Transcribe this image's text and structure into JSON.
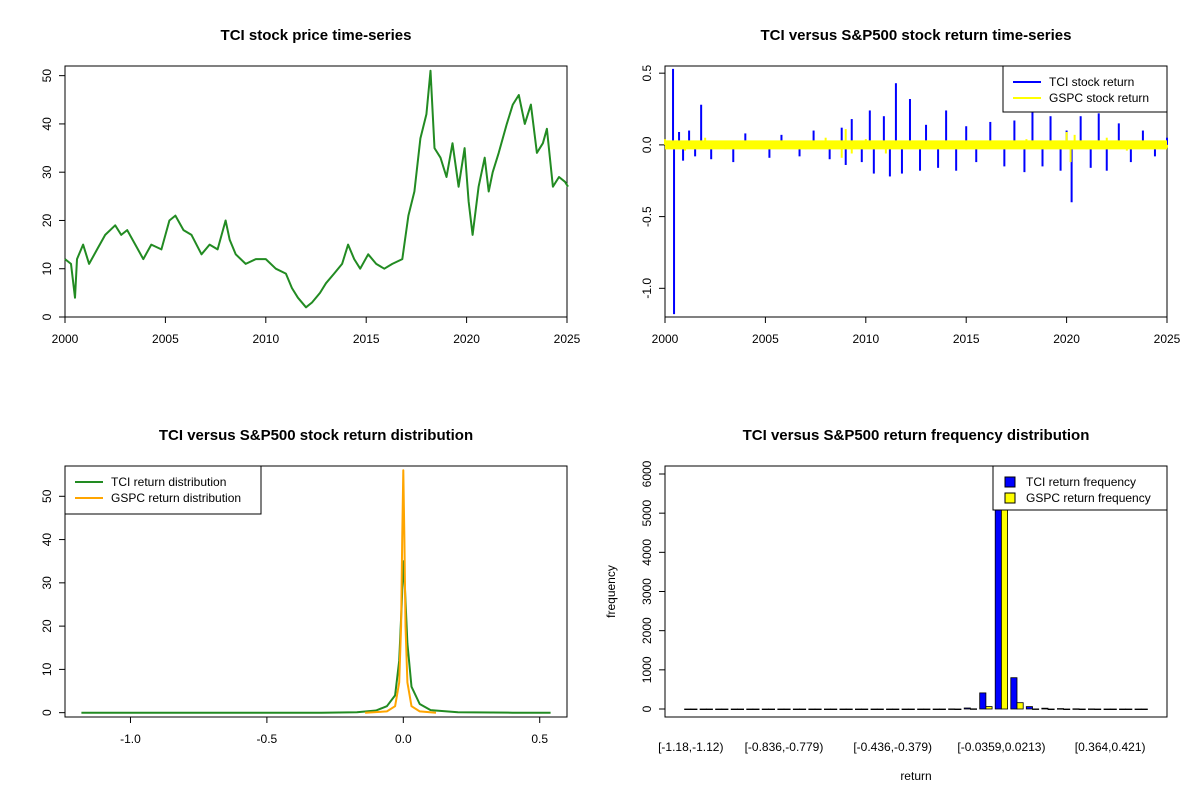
{
  "chart_data": [
    {
      "type": "line",
      "title": "TCI stock price time-series",
      "xlabel": "",
      "ylabel": "",
      "xlim": [
        2000,
        2025
      ],
      "ylim": [
        0,
        52
      ],
      "xticks": [
        "2000",
        "2005",
        "2010",
        "2015",
        "2020",
        "2025"
      ],
      "yticks": [
        "0",
        "10",
        "20",
        "30",
        "40",
        "50"
      ],
      "series": [
        {
          "name": "TCI stock price",
          "color": "#228B22",
          "x": [
            2000.0,
            2000.3,
            2000.5,
            2000.6,
            2000.9,
            2001.2,
            2001.6,
            2002.0,
            2002.5,
            2002.8,
            2003.1,
            2003.5,
            2003.9,
            2004.3,
            2004.8,
            2005.2,
            2005.5,
            2005.9,
            2006.3,
            2006.8,
            2007.2,
            2007.6,
            2008.0,
            2008.2,
            2008.5,
            2009.0,
            2009.5,
            2010.0,
            2010.5,
            2011.0,
            2011.3,
            2011.6,
            2012.0,
            2012.3,
            2012.7,
            2013.0,
            2013.4,
            2013.8,
            2014.1,
            2014.4,
            2014.7,
            2015.1,
            2015.5,
            2015.9,
            2016.3,
            2016.8,
            2017.1,
            2017.4,
            2017.7,
            2018.0,
            2018.2,
            2018.4,
            2018.7,
            2019.0,
            2019.3,
            2019.6,
            2019.9,
            2020.1,
            2020.3,
            2020.6,
            2020.9,
            2021.1,
            2021.3,
            2021.6,
            2022.0,
            2022.3,
            2022.6,
            2022.9,
            2023.2,
            2023.5,
            2023.8,
            2024.0,
            2024.3,
            2024.6,
            2024.9,
            2025.05
          ],
          "values": [
            12,
            11,
            4,
            12,
            15,
            11,
            14,
            17,
            19,
            17,
            18,
            15,
            12,
            15,
            14,
            20,
            21,
            18,
            17,
            13,
            15,
            14,
            20,
            16,
            13,
            11,
            12,
            12,
            10,
            9,
            6,
            4,
            2,
            3,
            5,
            7,
            9,
            11,
            15,
            12,
            10,
            13,
            11,
            10,
            11,
            12,
            21,
            26,
            37,
            42,
            51,
            35,
            33,
            29,
            36,
            27,
            35,
            24,
            17,
            27,
            33,
            26,
            30,
            34,
            40,
            44,
            46,
            40,
            44,
            34,
            36,
            39,
            27,
            29,
            28,
            27
          ]
        }
      ]
    },
    {
      "type": "line",
      "title": "TCI versus S&P500 stock return time-series",
      "xlabel": "",
      "ylabel": "",
      "xlim": [
        2000,
        2025
      ],
      "ylim": [
        -1.2,
        0.55
      ],
      "xticks": [
        "2000",
        "2005",
        "2010",
        "2015",
        "2020",
        "2025"
      ],
      "yticks": [
        "-1.0",
        "-0.5",
        "0.0",
        "0.5"
      ],
      "legend_position": "top-right",
      "series": [
        {
          "name": "TCI stock return",
          "color": "#0000FF",
          "x": [
            2000.4,
            2000.45,
            2000.7,
            2000.9,
            2001.2,
            2001.5,
            2001.8,
            2002.3,
            2003.4,
            2004.0,
            2005.2,
            2005.8,
            2006.7,
            2007.4,
            2008.2,
            2008.8,
            2009.0,
            2009.3,
            2009.8,
            2010.2,
            2010.4,
            2010.9,
            2011.2,
            2011.5,
            2011.8,
            2012.2,
            2012.7,
            2013.0,
            2013.6,
            2014.0,
            2014.5,
            2015.0,
            2015.5,
            2016.2,
            2016.9,
            2017.4,
            2017.9,
            2018.3,
            2018.8,
            2019.2,
            2019.7,
            2020.0,
            2020.25,
            2020.7,
            2021.2,
            2021.6,
            2022.0,
            2022.6,
            2023.2,
            2023.8,
            2024.4,
            2025.0
          ],
          "values": [
            0.53,
            -1.18,
            0.09,
            -0.11,
            0.1,
            -0.08,
            0.28,
            -0.1,
            -0.12,
            0.08,
            -0.09,
            0.07,
            -0.08,
            0.1,
            -0.1,
            0.12,
            -0.14,
            0.18,
            -0.12,
            0.24,
            -0.2,
            0.2,
            -0.22,
            0.43,
            -0.2,
            0.32,
            -0.18,
            0.14,
            -0.16,
            0.24,
            -0.18,
            0.13,
            -0.12,
            0.16,
            -0.15,
            0.17,
            -0.19,
            0.28,
            -0.15,
            0.2,
            -0.18,
            0.1,
            -0.4,
            0.2,
            -0.16,
            0.22,
            -0.18,
            0.15,
            -0.12,
            0.1,
            -0.08,
            0.05
          ]
        },
        {
          "name": "GSPC stock return",
          "color": "#FFFF00",
          "x": [
            2000.0,
            2001.0,
            2002.0,
            2003.0,
            2004.0,
            2005.0,
            2006.0,
            2007.0,
            2008.0,
            2008.8,
            2009.0,
            2009.3,
            2010.0,
            2011.0,
            2012.0,
            2013.0,
            2014.0,
            2015.0,
            2016.0,
            2017.0,
            2018.0,
            2019.0,
            2020.0,
            2020.2,
            2020.4,
            2021.0,
            2022.0,
            2023.0,
            2024.0,
            2025.0
          ],
          "values": [
            0.04,
            -0.04,
            0.05,
            -0.03,
            0.02,
            -0.02,
            0.02,
            -0.03,
            0.05,
            -0.09,
            0.11,
            -0.06,
            0.04,
            -0.06,
            0.03,
            -0.02,
            0.02,
            -0.03,
            0.03,
            -0.02,
            0.04,
            -0.03,
            0.09,
            -0.12,
            0.07,
            -0.03,
            0.05,
            -0.04,
            0.03,
            -0.02
          ]
        }
      ]
    },
    {
      "type": "line",
      "title": "TCI versus S&P500 stock return distribution",
      "xlabel": "",
      "ylabel": "",
      "xlim": [
        -1.24,
        0.6
      ],
      "ylim": [
        -1,
        57
      ],
      "xticks": [
        "-1.0",
        "-0.5",
        "0.0",
        "0.5"
      ],
      "yticks": [
        "0",
        "10",
        "20",
        "30",
        "40",
        "50"
      ],
      "legend_position": "top-left",
      "series": [
        {
          "name": "TCI return distribution",
          "color": "#228B22",
          "x": [
            -1.18,
            -0.3,
            -0.17,
            -0.1,
            -0.06,
            -0.03,
            -0.015,
            -0.006,
            0.0,
            0.006,
            0.015,
            0.03,
            0.06,
            0.1,
            0.2,
            0.4,
            0.54
          ],
          "values": [
            0,
            0,
            0.1,
            0.5,
            1.5,
            4,
            12,
            25,
            35,
            29,
            16,
            6,
            2,
            0.6,
            0.1,
            0,
            0
          ]
        },
        {
          "name": "GSPC return distribution",
          "color": "#FFA500",
          "x": [
            -0.14,
            -0.06,
            -0.03,
            -0.015,
            -0.008,
            -0.004,
            0.0,
            0.004,
            0.008,
            0.015,
            0.03,
            0.06,
            0.12
          ],
          "values": [
            0,
            0.3,
            1.5,
            7,
            20,
            40,
            56,
            40,
            20,
            7,
            1.5,
            0.3,
            0
          ]
        }
      ]
    },
    {
      "type": "bar",
      "title": "TCI versus S&P500 return frequency distribution",
      "xlabel": "return",
      "ylabel": "frequency",
      "ylim": [
        0,
        6000
      ],
      "yticks": [
        "0",
        "1000",
        "2000",
        "3000",
        "4000",
        "5000",
        "6000"
      ],
      "xtick_labels": [
        "[-1.18,-1.12)",
        "[-0.836,-0.779)",
        "[-0.436,-0.379)",
        "[-0.0359,0.0213)",
        "[0.364,0.421)"
      ],
      "xtick_bins": [
        0,
        6,
        13,
        20,
        27
      ],
      "legend_position": "top-right",
      "bins": 30,
      "series": [
        {
          "name": "TCI return frequency",
          "color": "#0000FF",
          "values": [
            1,
            0,
            0,
            0,
            0,
            0,
            0,
            0,
            0,
            0,
            0,
            0,
            0,
            0,
            0,
            0,
            1,
            2,
            25,
            410,
            5800,
            800,
            60,
            20,
            10,
            4,
            2,
            1,
            1,
            1
          ]
        },
        {
          "name": "GSPC return frequency",
          "color": "#FFFF00",
          "values": [
            0,
            0,
            0,
            0,
            0,
            0,
            0,
            0,
            0,
            0,
            0,
            0,
            0,
            0,
            0,
            0,
            0,
            0,
            5,
            60,
            6000,
            160,
            3,
            0,
            0,
            0,
            0,
            0,
            0,
            0
          ]
        }
      ]
    }
  ]
}
